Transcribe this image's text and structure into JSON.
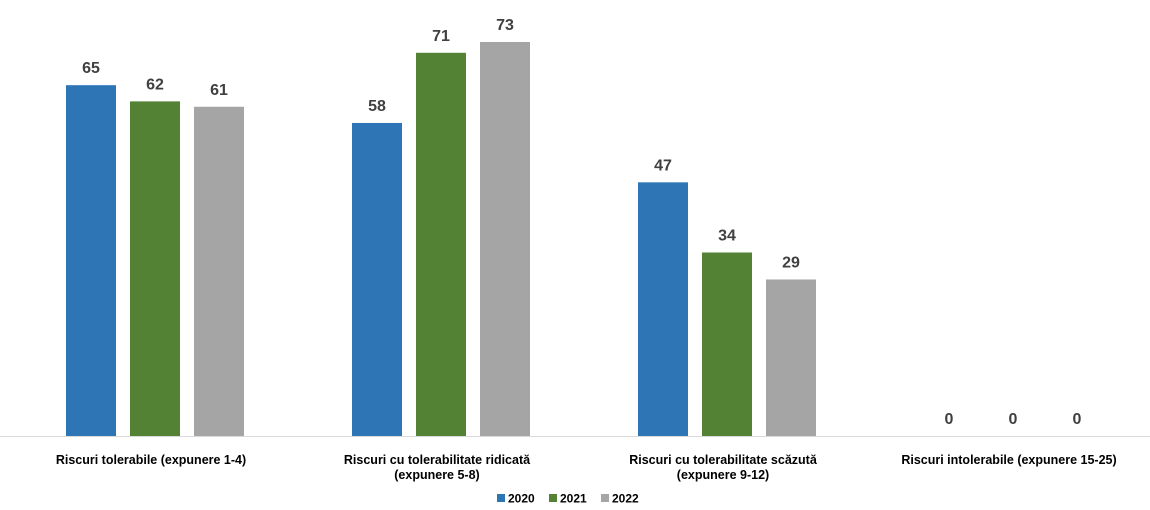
{
  "chart_data": {
    "type": "bar",
    "categories": [
      [
        "Riscuri tolerabile (expunere 1-4)"
      ],
      [
        "Riscuri cu tolerabilitate ridicată",
        "(expunere 5-8)"
      ],
      [
        "Riscuri cu  tolerabilitate scăzută",
        "(expunere 9-12)"
      ],
      [
        "Riscuri intolerabile (expunere 15-25)"
      ]
    ],
    "series": [
      {
        "name": "2020",
        "color": "#2e75b6",
        "values": [
          65,
          58,
          47,
          0
        ]
      },
      {
        "name": "2021",
        "color": "#548235",
        "values": [
          62,
          71,
          34,
          0
        ]
      },
      {
        "name": "2022",
        "color": "#a5a5a5",
        "values": [
          61,
          73,
          29,
          0
        ]
      }
    ],
    "ylim": [
      0,
      73
    ],
    "grid": false,
    "legend": "bottom-center",
    "data_label_color": "#404040",
    "axis_color": "#d9d9d9"
  }
}
